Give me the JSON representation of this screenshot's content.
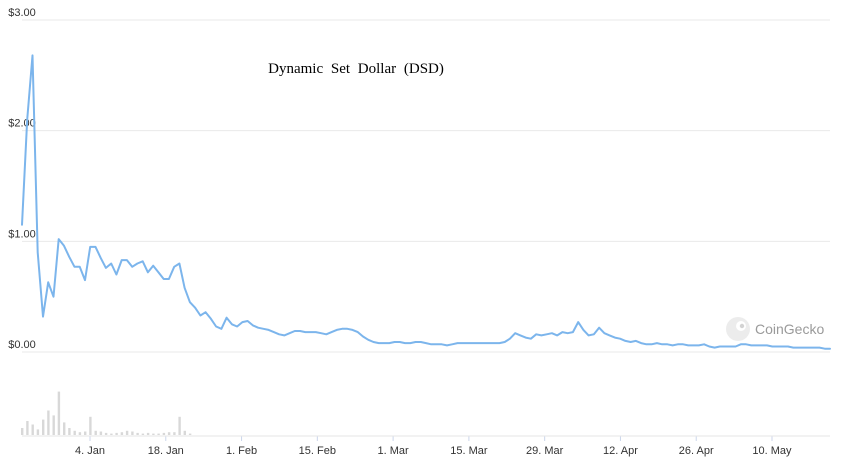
{
  "chart_data": {
    "type": "line",
    "title": "Dynamic Set Dollar (DSD)",
    "watermark": "CoinGecko",
    "y_ticks": [
      "$3.00",
      "$2.00",
      "$1.00",
      "$0.00"
    ],
    "ylim": [
      0,
      3
    ],
    "x_ticks": [
      "4. Jan",
      "18. Jan",
      "1. Feb",
      "15. Feb",
      "1. Mar",
      "15. Mar",
      "29. Mar",
      "12. Apr",
      "26. Apr",
      "10. May"
    ],
    "grid": true,
    "colors": {
      "line": "#7cb5ec",
      "volume": "#d8d8d8",
      "grid": "#e9e9e9"
    },
    "series": [
      {
        "values": [
          1.15,
          2.1,
          2.68,
          0.9,
          0.32,
          0.63,
          0.5,
          1.02,
          0.96,
          0.86,
          0.77,
          0.77,
          0.65,
          0.95,
          0.95,
          0.85,
          0.76,
          0.8,
          0.7,
          0.83,
          0.83,
          0.77,
          0.8,
          0.82,
          0.72,
          0.78,
          0.72,
          0.66,
          0.66,
          0.77,
          0.8,
          0.58,
          0.45,
          0.4,
          0.33,
          0.36,
          0.3,
          0.23,
          0.21,
          0.31,
          0.25,
          0.23,
          0.27,
          0.28,
          0.24,
          0.22,
          0.21,
          0.2,
          0.18,
          0.16,
          0.15,
          0.17,
          0.19,
          0.19,
          0.18,
          0.18,
          0.18,
          0.17,
          0.16,
          0.18,
          0.2,
          0.21,
          0.21,
          0.2,
          0.18,
          0.14,
          0.11,
          0.09,
          0.08,
          0.08,
          0.08,
          0.09,
          0.09,
          0.08,
          0.08,
          0.09,
          0.09,
          0.08,
          0.07,
          0.07,
          0.07,
          0.06,
          0.07,
          0.08,
          0.08,
          0.08,
          0.08,
          0.08,
          0.08,
          0.08,
          0.08,
          0.08,
          0.09,
          0.12,
          0.17,
          0.15,
          0.13,
          0.12,
          0.16,
          0.15,
          0.16,
          0.17,
          0.15,
          0.18,
          0.17,
          0.18,
          0.27,
          0.2,
          0.15,
          0.16,
          0.22,
          0.17,
          0.15,
          0.13,
          0.12,
          0.1,
          0.09,
          0.1,
          0.08,
          0.07,
          0.07,
          0.08,
          0.07,
          0.07,
          0.06,
          0.07,
          0.07,
          0.06,
          0.06,
          0.06,
          0.07,
          0.05,
          0.04,
          0.05,
          0.05,
          0.05,
          0.05,
          0.07,
          0.07,
          0.06,
          0.06,
          0.06,
          0.06,
          0.05,
          0.05,
          0.05,
          0.05,
          0.04,
          0.04,
          0.04,
          0.04,
          0.04,
          0.04,
          0.03,
          0.03
        ]
      }
    ],
    "volume": [
      0.1,
      0.2,
      0.15,
      0.08,
      0.22,
      0.35,
      0.28,
      0.62,
      0.18,
      0.1,
      0.06,
      0.04,
      0.05,
      0.26,
      0.06,
      0.05,
      0.03,
      0.02,
      0.03,
      0.04,
      0.06,
      0.05,
      0.03,
      0.02,
      0.03,
      0.02,
      0.02,
      0.03,
      0.04,
      0.04,
      0.26,
      0.06,
      0.02
    ]
  }
}
